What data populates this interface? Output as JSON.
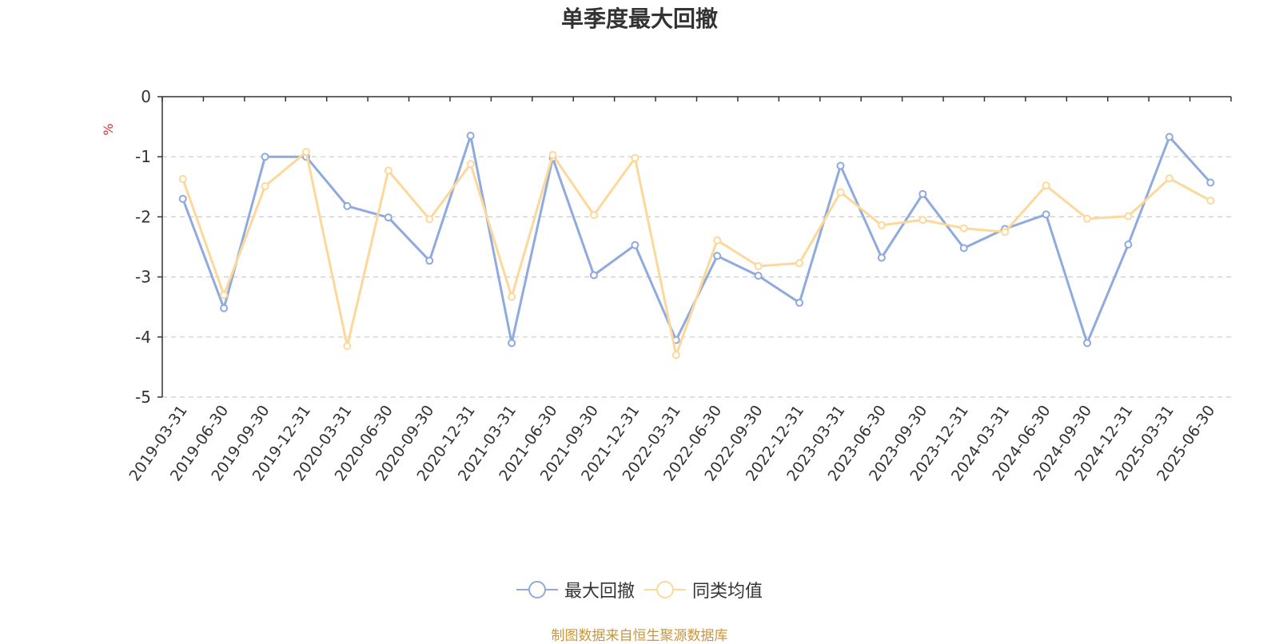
{
  "chart_data": {
    "type": "line",
    "title": "单季度最大回撤",
    "ylabel": "%",
    "ylim": [
      -5,
      0
    ],
    "yticks": [
      0,
      -1,
      -2,
      -3,
      -4,
      -5
    ],
    "grid": true,
    "legend_position": "bottom",
    "categories": [
      "2019-03-31",
      "2019-06-30",
      "2019-09-30",
      "2019-12-31",
      "2020-03-31",
      "2020-06-30",
      "2020-09-30",
      "2020-12-31",
      "2021-03-31",
      "2021-06-30",
      "2021-09-30",
      "2021-12-31",
      "2022-03-31",
      "2022-06-30",
      "2022-09-30",
      "2022-12-31",
      "2023-03-31",
      "2023-06-30",
      "2023-09-30",
      "2023-12-31",
      "2024-03-31",
      "2024-06-30",
      "2024-09-30",
      "2024-12-31",
      "2025-03-31",
      "2025-06-30"
    ],
    "series": [
      {
        "name": "最大回撤",
        "color": "#8faadc",
        "values": [
          -1.7,
          -3.52,
          -1.0,
          -1.0,
          -1.82,
          -2.01,
          -2.73,
          -0.65,
          -4.1,
          -1.02,
          -2.97,
          -2.47,
          -4.05,
          -2.65,
          -2.98,
          -3.43,
          -1.15,
          -2.68,
          -1.62,
          -2.52,
          -2.2,
          -1.96,
          -4.1,
          -2.46,
          -0.67,
          -1.43
        ]
      },
      {
        "name": "同类均值",
        "color": "#fcd89a",
        "values": [
          -1.37,
          -3.3,
          -1.49,
          -0.92,
          -4.15,
          -1.23,
          -2.04,
          -1.12,
          -3.33,
          -0.97,
          -1.97,
          -1.02,
          -4.3,
          -2.39,
          -2.82,
          -2.77,
          -1.59,
          -2.14,
          -2.05,
          -2.19,
          -2.25,
          -1.48,
          -2.03,
          -1.99,
          -1.36,
          -1.73
        ]
      }
    ]
  },
  "source_note": "制图数据来自恒生聚源数据库",
  "colors": {
    "grid": "#cccccc",
    "axis": "#333333",
    "ylabel": "#e03030",
    "source": "#c8963e"
  }
}
